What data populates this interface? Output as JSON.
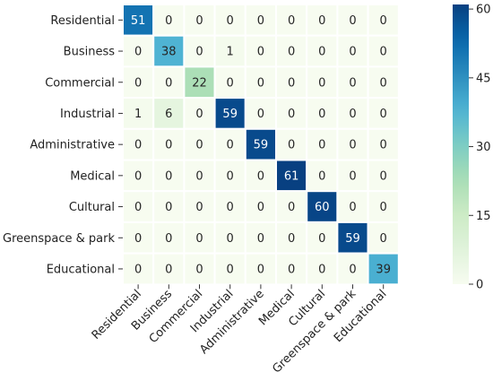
{
  "chart_data": {
    "type": "heatmap",
    "title": "",
    "xlabel": "",
    "ylabel": "",
    "row_labels": [
      "Residential",
      "Business",
      "Commercial",
      "Industrial",
      "Administrative",
      "Medical",
      "Cultural",
      "Greenspace & park",
      "Educational"
    ],
    "col_labels": [
      "Residential",
      "Business",
      "Commercial",
      "Industrial",
      "Administrative",
      "Medical",
      "Cultural",
      "Greenspace & park",
      "Educational"
    ],
    "values": [
      [
        51,
        0,
        0,
        0,
        0,
        0,
        0,
        0,
        0
      ],
      [
        0,
        38,
        0,
        1,
        0,
        0,
        0,
        0,
        0
      ],
      [
        0,
        0,
        22,
        0,
        0,
        0,
        0,
        0,
        0
      ],
      [
        1,
        6,
        0,
        59,
        0,
        0,
        0,
        0,
        0
      ],
      [
        0,
        0,
        0,
        0,
        59,
        0,
        0,
        0,
        0
      ],
      [
        0,
        0,
        0,
        0,
        0,
        61,
        0,
        0,
        0
      ],
      [
        0,
        0,
        0,
        0,
        0,
        0,
        60,
        0,
        0
      ],
      [
        0,
        0,
        0,
        0,
        0,
        0,
        0,
        59,
        0
      ],
      [
        0,
        0,
        0,
        0,
        0,
        0,
        0,
        0,
        39
      ]
    ],
    "colorbar": {
      "min": 0,
      "max": 61,
      "ticks": [
        0,
        15,
        30,
        45,
        60
      ]
    },
    "colormap": "GnBu",
    "colors": {
      "low": "#f7fcf0",
      "high": "#084081"
    }
  }
}
